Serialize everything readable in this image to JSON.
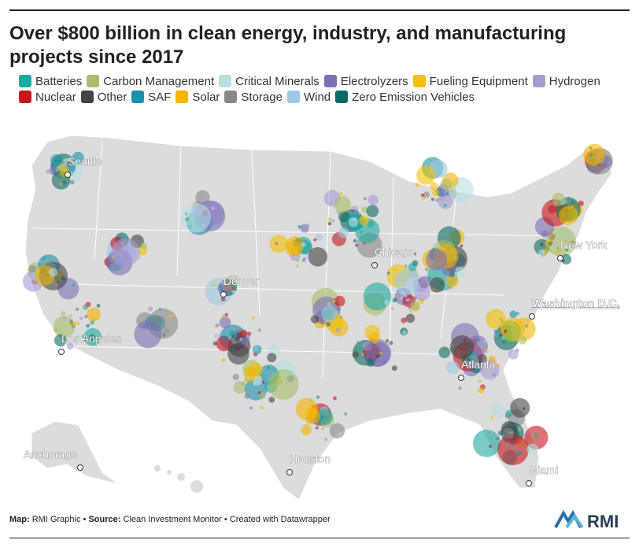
{
  "title": "Over $800 billion in clean energy, industry, and manufacturing projects since 2017",
  "legend": [
    {
      "label": "Batteries",
      "color": "#1fa8a0"
    },
    {
      "label": "Carbon Management",
      "color": "#a9be6a"
    },
    {
      "label": "Critical Minerals",
      "color": "#b7dfe2"
    },
    {
      "label": "Electrolyzers",
      "color": "#7c6fb4"
    },
    {
      "label": "Fueling Equipment",
      "color": "#f2c200"
    },
    {
      "label": "Hydrogen",
      "color": "#a89bd4"
    },
    {
      "label": "Nuclear",
      "color": "#c8161d"
    },
    {
      "label": "Other",
      "color": "#444444"
    },
    {
      "label": "SAF",
      "color": "#1991a8"
    },
    {
      "label": "Solar",
      "color": "#f4b400"
    },
    {
      "label": "Storage",
      "color": "#888888"
    },
    {
      "label": "Wind",
      "color": "#9ec9e2"
    },
    {
      "label": "Zero Emission Vehicles",
      "color": "#0e6b63"
    }
  ],
  "cities": [
    {
      "name": "Seattle"
    },
    {
      "name": "Denver"
    },
    {
      "name": "Chicago"
    },
    {
      "name": "New York"
    },
    {
      "name": "Washington D.C."
    },
    {
      "name": "Los Angeles"
    },
    {
      "name": "Atlanta"
    },
    {
      "name": "Houston"
    },
    {
      "name": "Miami"
    },
    {
      "name": "Anchorage"
    }
  ],
  "footer": {
    "map_label": "Map:",
    "map_value": "RMI Graphic",
    "source_label": "Source:",
    "source_value": "Clean Investment Monitor",
    "created": "Created with Datawrapper",
    "separator": "•"
  },
  "logo_text": "RMI",
  "colors": {
    "land": "#dcdcdc",
    "border": "#ffffff",
    "background": "#ffffff"
  }
}
